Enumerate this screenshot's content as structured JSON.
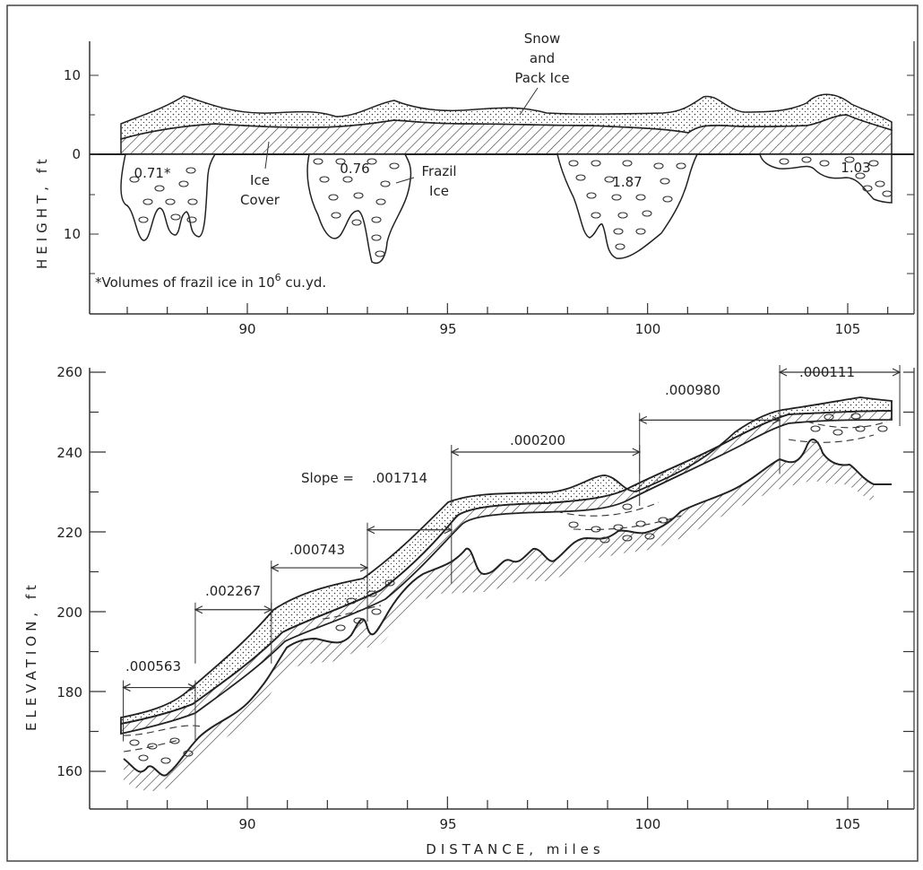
{
  "top_panel": {
    "ylabel": "HEIGHT, ft",
    "y_ticks": [
      "10",
      "0",
      "10"
    ],
    "x_ticks": [
      "90",
      "95",
      "100",
      "105"
    ],
    "labels": {
      "snow_pack_ice": [
        "Snow",
        "and",
        "Pack Ice"
      ],
      "ice_cover": [
        "Ice",
        "Cover"
      ],
      "frazil_ice": [
        "Frazil",
        "Ice"
      ],
      "footnote_prefix": "*Volumes of frazil ice in 10",
      "footnote_exp": "6",
      "footnote_suffix": " cu.yd."
    },
    "frazil_volumes": [
      "0.71*",
      "0.76",
      "1.87",
      "1.03"
    ]
  },
  "bottom_panel": {
    "ylabel": "ELEVATION, ft",
    "xlabel": "DISTANCE, miles",
    "y_ticks": [
      "260",
      "240",
      "220",
      "200",
      "180",
      "160"
    ],
    "x_ticks": [
      "90",
      "95",
      "100",
      "105"
    ],
    "slope_prefix": "Slope =",
    "slopes": [
      ".000563",
      ".002267",
      ".000743",
      ".001714",
      ".000200",
      ".000980",
      ".000111"
    ]
  },
  "chart_data": [
    {
      "type": "area",
      "title": "",
      "xlabel": "",
      "ylabel": "HEIGHT, ft",
      "xlim": [
        86.5,
        106.5
      ],
      "ylim": [
        -20,
        13
      ],
      "x_ticks": [
        90,
        95,
        100,
        105
      ],
      "series": [
        {
          "name": "Snow and Pack Ice",
          "x": [
            87,
            88,
            88.5,
            90,
            92,
            93.5,
            95,
            97,
            99,
            101,
            102,
            103,
            104,
            105,
            106.5
          ],
          "values": [
            4,
            6,
            7,
            5,
            5,
            6,
            5,
            6,
            5,
            4,
            7,
            5,
            5,
            7,
            4
          ]
        },
        {
          "name": "Ice Cover",
          "x": [
            87,
            88,
            90,
            92,
            95,
            98,
            101,
            102,
            104,
            105,
            106.5
          ],
          "values": [
            3,
            4,
            3.5,
            3,
            3.5,
            3,
            3,
            4,
            3,
            5,
            3
          ]
        }
      ],
      "frazil_volumes": [
        {
          "x": 87.6,
          "value": 0.71
        },
        {
          "x": 92.8,
          "value": 0.76
        },
        {
          "x": 99.6,
          "value": 1.87
        },
        {
          "x": 105.2,
          "value": 1.03
        }
      ]
    },
    {
      "type": "line",
      "title": "",
      "xlabel": "DISTANCE, miles",
      "ylabel": "ELEVATION, ft",
      "xlim": [
        86.5,
        106.5
      ],
      "ylim": [
        150,
        262
      ],
      "x_ticks": [
        90,
        95,
        100,
        105
      ],
      "y_ticks": [
        160,
        180,
        200,
        220,
        240,
        260
      ],
      "series": [
        {
          "name": "",
          "x": [
            86.9,
            88.2,
            89.5,
            91.0,
            93.0,
            95.0,
            96.0,
            98.0,
            99.0,
            100.0,
            101.5,
            103.0,
            104.0,
            105.0,
            106.5
          ],
          "values": [
            173,
            176,
            188,
            200,
            207,
            222,
            228,
            229,
            234,
            232,
            240,
            251,
            251,
            253,
            253
          ]
        },
        {
          "name": "",
          "x": [
            86.9,
            88.0,
            89.0,
            90.0,
            91.0,
            92.5,
            93.5,
            94.5,
            95.5,
            96.5,
            97.5,
            98.5,
            99.5,
            100.5,
            101.5,
            102.5,
            103.5,
            104.5,
            105.0,
            106.0
          ],
          "values": [
            162,
            159,
            166,
            175,
            184,
            191,
            198,
            212,
            216,
            210,
            211,
            214,
            216,
            218,
            223,
            230,
            237,
            242,
            239,
            231
          ]
        }
      ],
      "slope_segments": [
        {
          "x0": 86.9,
          "x1": 88.7,
          "slope": 0.000563
        },
        {
          "x0": 88.7,
          "x1": 90.6,
          "slope": 0.002267
        },
        {
          "x0": 90.6,
          "x1": 93.0,
          "slope": 0.000743
        },
        {
          "x0": 93.0,
          "x1": 95.1,
          "slope": 0.001714
        },
        {
          "x0": 95.1,
          "x1": 99.8,
          "slope": 0.0002
        },
        {
          "x0": 99.8,
          "x1": 103.3,
          "slope": 0.00098
        },
        {
          "x0": 103.3,
          "x1": 106.3,
          "slope": 0.000111
        }
      ]
    }
  ]
}
